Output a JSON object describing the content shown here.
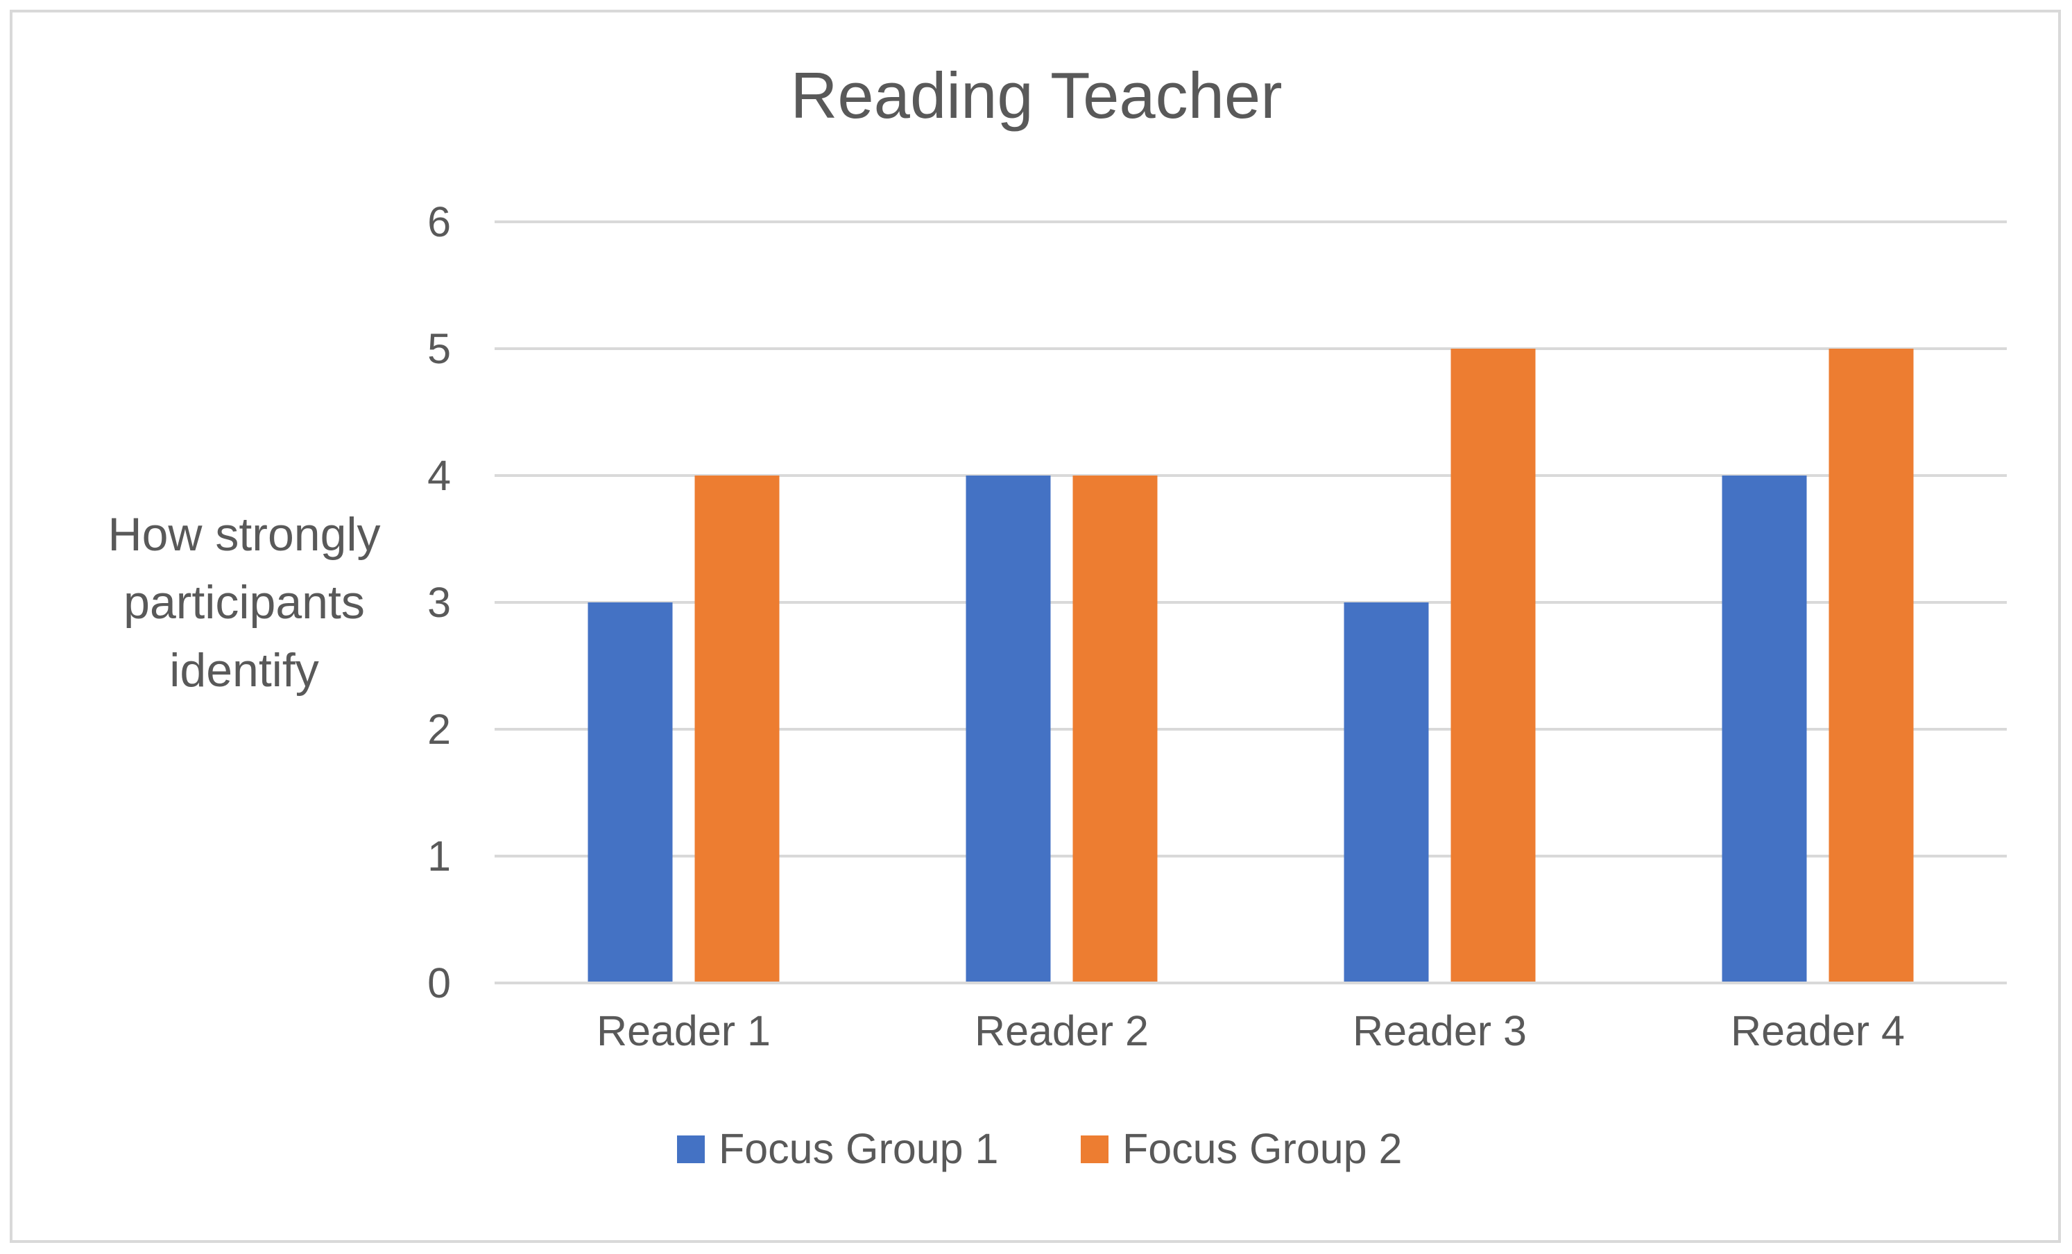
{
  "chart_data": {
    "type": "bar",
    "title": "Reading Teacher",
    "ylabel": "How strongly participants identify",
    "ylabel_lines": [
      "How strongly",
      "participants",
      "identify"
    ],
    "xlabel": "",
    "categories": [
      "Reader 1",
      "Reader 2",
      "Reader 3",
      "Reader 4"
    ],
    "series": [
      {
        "name": "Focus Group 1",
        "color": "#4472C4",
        "values": [
          3,
          4,
          3,
          4
        ]
      },
      {
        "name": "Focus Group 2",
        "color": "#ED7D31",
        "values": [
          4,
          4,
          5,
          5
        ]
      }
    ],
    "ylim": [
      0,
      6
    ],
    "yticks": [
      0,
      1,
      2,
      3,
      4,
      5,
      6
    ],
    "grid": true,
    "gridline_color": "#d9d9d9",
    "legend_position": "bottom"
  }
}
